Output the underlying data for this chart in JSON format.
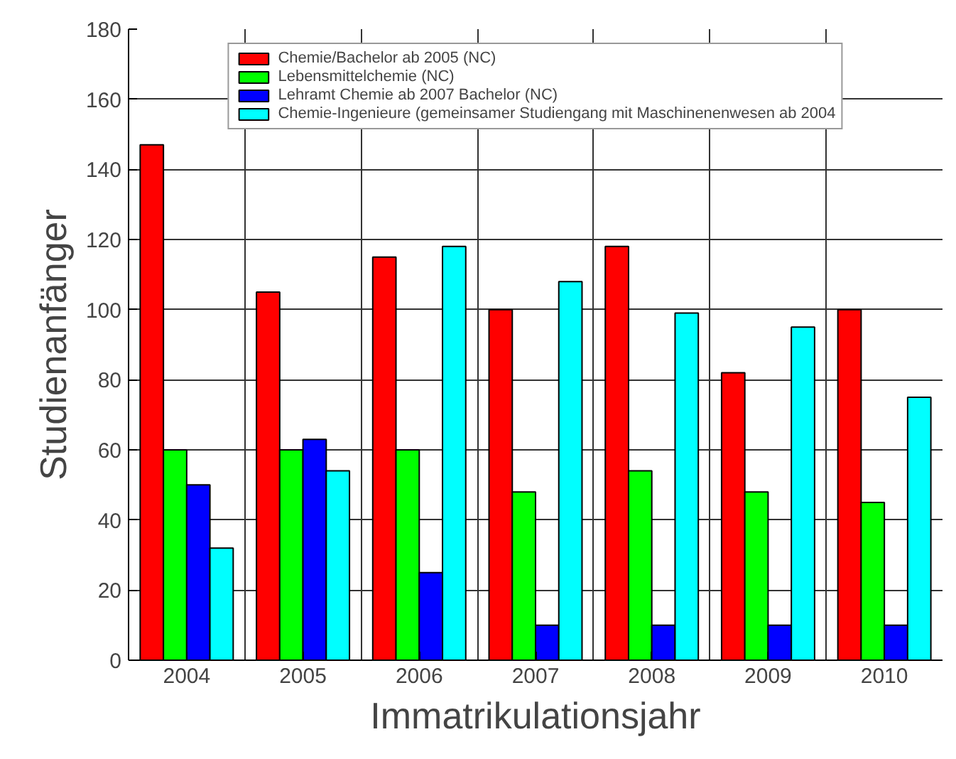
{
  "chart_data": {
    "type": "bar",
    "xlabel": "Immatrikulationsjahr",
    "ylabel": "Studienanfänger",
    "categories": [
      "2004",
      "2005",
      "2006",
      "2007",
      "2008",
      "2009",
      "2010"
    ],
    "series": [
      {
        "name": "Chemie/Bachelor ab 2005 (NC)",
        "color": "#ff0000",
        "values": [
          147,
          105,
          115,
          100,
          118,
          82,
          100
        ]
      },
      {
        "name": "Lebensmittelchemie (NC)",
        "color": "#00ff00",
        "values": [
          60,
          60,
          60,
          48,
          54,
          48,
          45
        ]
      },
      {
        "name": "Lehramt Chemie ab 2007 Bachelor (NC)",
        "color": "#0000ff",
        "values": [
          50,
          63,
          25,
          10,
          10,
          10,
          10
        ]
      },
      {
        "name": "Chemie-Ingenieure (gemeinsamer Studiengang mit Maschinenenwesen ab 2004",
        "color": "#00ffff",
        "values": [
          32,
          54,
          118,
          108,
          99,
          95,
          75
        ]
      }
    ],
    "ylim": [
      0,
      180
    ],
    "yticks": [
      0,
      20,
      40,
      60,
      80,
      100,
      120,
      140,
      160,
      180
    ],
    "grid": true,
    "legend": "top"
  }
}
